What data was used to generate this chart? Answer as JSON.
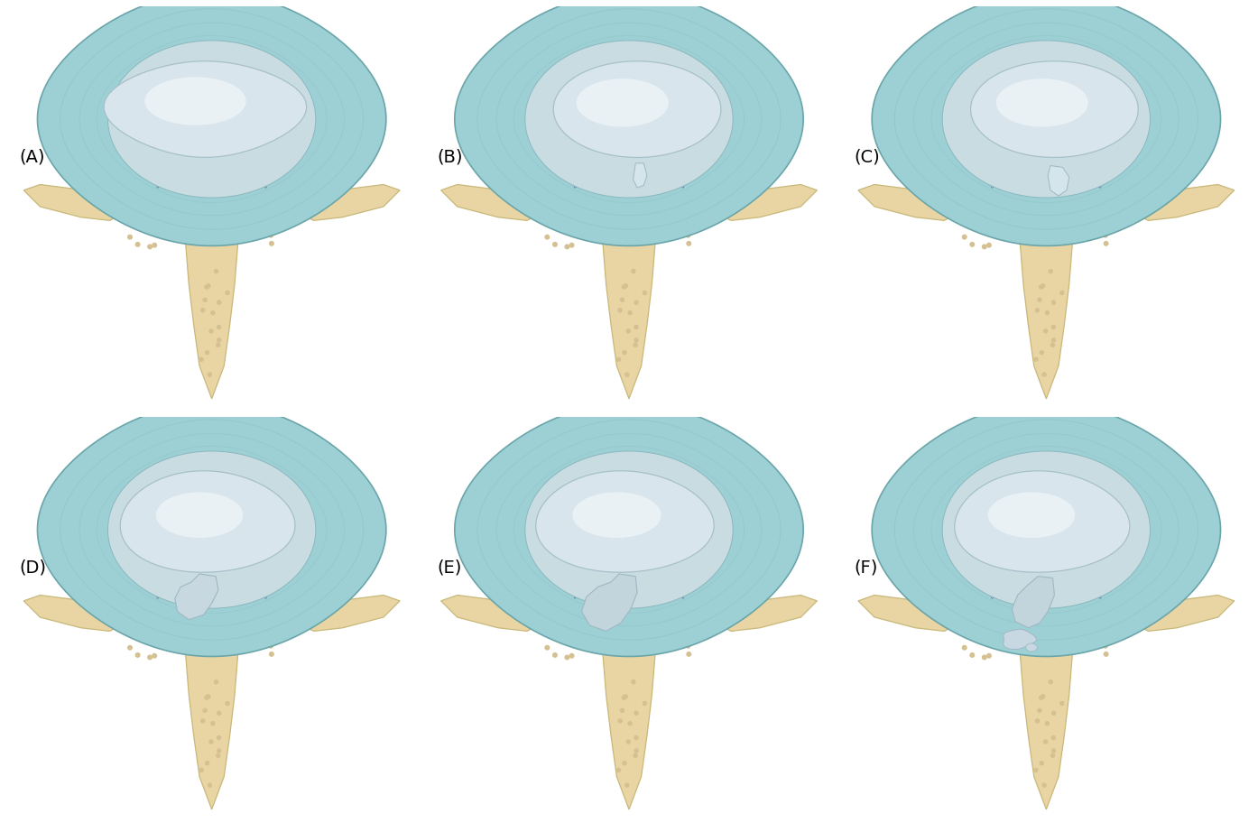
{
  "background_color": "#ffffff",
  "bone_color": "#e8d5a3",
  "bone_dark": "#c8b87a",
  "bone_shadow": "#d4c090",
  "disc_outer_color": "#9dd0d4",
  "disc_outer_dark": "#7ab8bc",
  "disc_inner_color": "#d8e8ec",
  "nucleus_color": "#dce8f0",
  "nucleus_highlight": "#f0f5f8",
  "annulus_lines": "#8bbfc4",
  "ligament_color": "#3a5a8a",
  "herniation_color": "#c8d8e0",
  "labels": [
    "(A)",
    "(B)",
    "(C)",
    "(D)",
    "(E)",
    "(F)"
  ],
  "label_fontsize": 14,
  "fig_width": 13.94,
  "fig_height": 9.22
}
